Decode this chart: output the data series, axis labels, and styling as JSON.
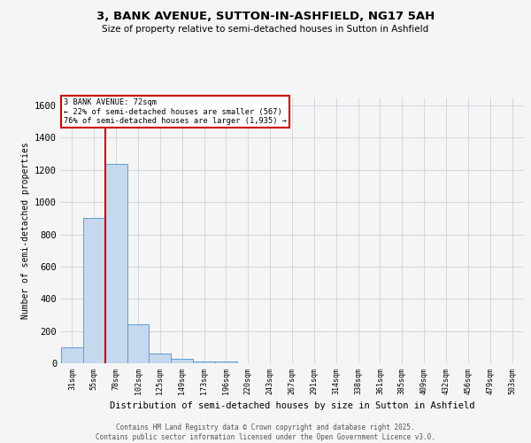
{
  "title": "3, BANK AVENUE, SUTTON-IN-ASHFIELD, NG17 5AH",
  "subtitle": "Size of property relative to semi-detached houses in Sutton in Ashfield",
  "xlabel": "Distribution of semi-detached houses by size in Sutton in Ashfield",
  "ylabel": "Number of semi-detached properties",
  "categories": [
    "31sqm",
    "55sqm",
    "78sqm",
    "102sqm",
    "125sqm",
    "149sqm",
    "173sqm",
    "196sqm",
    "220sqm",
    "243sqm",
    "267sqm",
    "291sqm",
    "314sqm",
    "338sqm",
    "361sqm",
    "385sqm",
    "409sqm",
    "432sqm",
    "456sqm",
    "479sqm",
    "503sqm"
  ],
  "values": [
    100,
    900,
    1240,
    240,
    60,
    25,
    10,
    10,
    0,
    0,
    0,
    0,
    0,
    0,
    0,
    0,
    0,
    0,
    0,
    0,
    0
  ],
  "bar_color": "#c5d8ed",
  "bar_edge_color": "#5a9fd4",
  "ylim": [
    0,
    1650
  ],
  "yticks": [
    0,
    200,
    400,
    600,
    800,
    1000,
    1200,
    1400,
    1600
  ],
  "property_index": 2,
  "property_label": "3 BANK AVENUE: 72sqm",
  "annotation_line1": "← 22% of semi-detached houses are smaller (567)",
  "annotation_line2": "76% of semi-detached houses are larger (1,935) →",
  "vline_color": "#cc0000",
  "annotation_box_color": "#cc0000",
  "background_color": "#f5f5f5",
  "grid_color": "#d0d8e0",
  "footnote1": "Contains HM Land Registry data © Crown copyright and database right 2025.",
  "footnote2": "Contains public sector information licensed under the Open Government Licence v3.0."
}
